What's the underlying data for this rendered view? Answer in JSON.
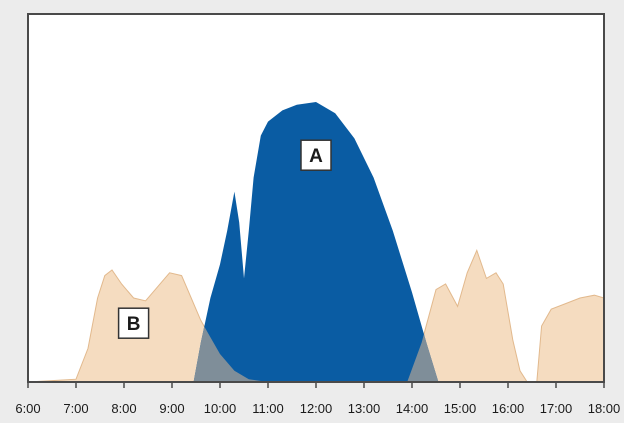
{
  "chart_data": {
    "type": "area",
    "title": "",
    "xlabel": "",
    "ylabel": "",
    "x_ticks": [
      "6:00",
      "7:00",
      "8:00",
      "9:00",
      "10:00",
      "11:00",
      "12:00",
      "13:00",
      "14:00",
      "15:00",
      "16:00",
      "17:00",
      "18:00"
    ],
    "xlim": [
      6,
      18
    ],
    "ylim": [
      0,
      100
    ],
    "grid": false,
    "y_ticks_visible": false,
    "colors": {
      "plot_background": "#ffffff",
      "frame": "#4a4a4a",
      "series_A": "#0a5ca3",
      "series_B": "#f5dcc0",
      "series_B_edge": "#e2b98d",
      "overlap": "#7f8e99",
      "page_background": "#ececec"
    },
    "series": [
      {
        "name": "A",
        "label_at": [
          12.0,
          81
        ],
        "points": [
          [
            9.45,
            0
          ],
          [
            9.6,
            14
          ],
          [
            9.8,
            30
          ],
          [
            10.0,
            42
          ],
          [
            10.15,
            54
          ],
          [
            10.3,
            68
          ],
          [
            10.4,
            57
          ],
          [
            10.5,
            37
          ],
          [
            10.6,
            54
          ],
          [
            10.7,
            73
          ],
          [
            10.85,
            88
          ],
          [
            11.0,
            93
          ],
          [
            11.3,
            97
          ],
          [
            11.6,
            99
          ],
          [
            12.0,
            100
          ],
          [
            12.4,
            96
          ],
          [
            12.8,
            87
          ],
          [
            13.2,
            73
          ],
          [
            13.6,
            54
          ],
          [
            14.0,
            32
          ],
          [
            14.3,
            14
          ],
          [
            14.55,
            0
          ]
        ]
      },
      {
        "name": "B",
        "label_at": [
          8.2,
          21
        ],
        "points": [
          [
            6.0,
            0
          ],
          [
            6.5,
            0.5
          ],
          [
            7.0,
            1
          ],
          [
            7.25,
            12
          ],
          [
            7.45,
            30
          ],
          [
            7.6,
            38
          ],
          [
            7.75,
            40
          ],
          [
            7.95,
            35
          ],
          [
            8.2,
            30
          ],
          [
            8.45,
            29
          ],
          [
            8.7,
            34
          ],
          [
            8.95,
            39
          ],
          [
            9.2,
            38
          ],
          [
            9.4,
            30
          ],
          [
            9.6,
            22
          ],
          [
            9.8,
            16
          ],
          [
            10.0,
            10
          ],
          [
            10.3,
            4
          ],
          [
            10.6,
            1
          ],
          [
            11.0,
            0
          ],
          [
            13.9,
            0
          ],
          [
            14.2,
            14
          ],
          [
            14.5,
            33
          ],
          [
            14.7,
            35
          ],
          [
            14.95,
            27
          ],
          [
            15.15,
            39
          ],
          [
            15.35,
            47
          ],
          [
            15.55,
            37
          ],
          [
            15.75,
            39
          ],
          [
            15.9,
            35
          ],
          [
            16.1,
            15
          ],
          [
            16.25,
            4
          ],
          [
            16.4,
            0
          ],
          [
            16.6,
            0
          ],
          [
            16.7,
            20
          ],
          [
            16.9,
            26
          ],
          [
            17.2,
            28
          ],
          [
            17.5,
            30
          ],
          [
            17.8,
            31
          ],
          [
            18.0,
            30
          ],
          [
            18.0,
            0
          ]
        ]
      }
    ]
  }
}
